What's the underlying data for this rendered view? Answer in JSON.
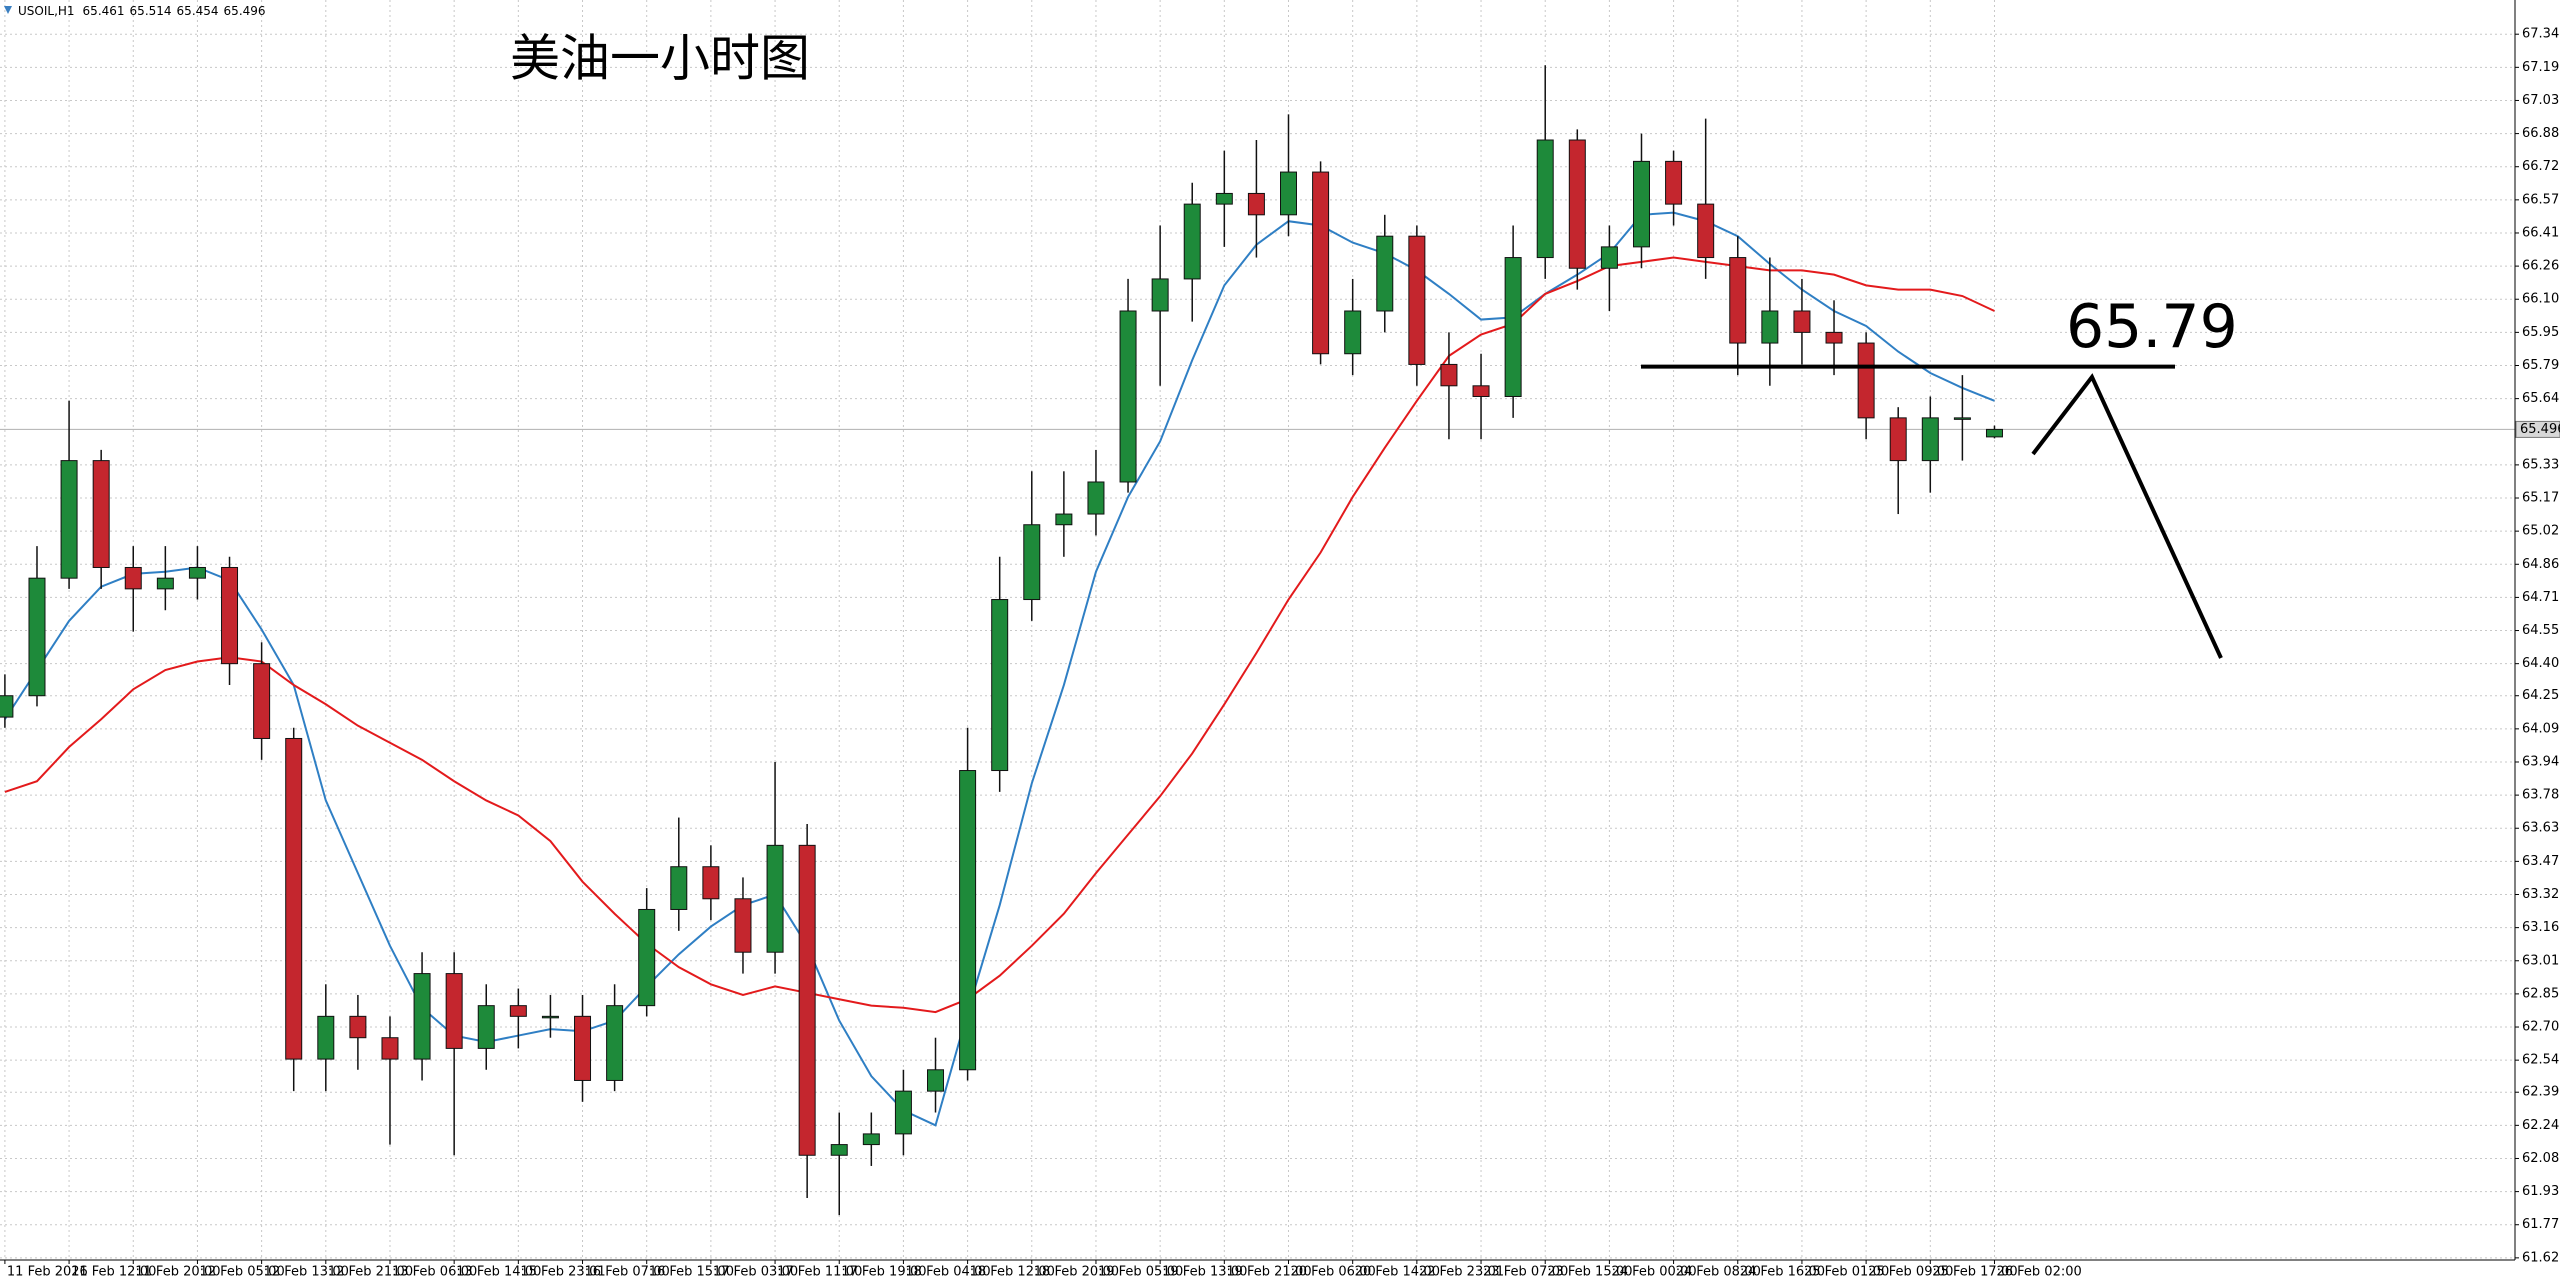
{
  "chart_data": {
    "type": "candlestick",
    "symbol": "USOIL,H1",
    "title": "美油一小时图",
    "level_line": 65.79,
    "categories": [
      "11 Feb 2026",
      null,
      "11 Feb 12:00",
      null,
      "11 Feb 20:00",
      null,
      "12 Feb 05:00",
      null,
      "12 Feb 13:00",
      null,
      "12 Feb 21:00",
      null,
      "13 Feb 06:00",
      null,
      "13 Feb 14:00",
      null,
      "15 Feb 23:01",
      null,
      "16 Feb 07:00",
      null,
      "16 Feb 15:00",
      null,
      "17 Feb 03:00",
      null,
      "17 Feb 11:00",
      null,
      "17 Feb 19:00",
      null,
      "18 Feb 04:00",
      null,
      "18 Feb 12:00",
      null,
      "18 Feb 20:00",
      null,
      "19 Feb 05:00",
      null,
      "19 Feb 13:00",
      null,
      "19 Feb 21:00",
      null,
      "20 Feb 06:00",
      null,
      "20 Feb 14:00",
      null,
      "22 Feb 23:01",
      null,
      "23 Feb 07:00",
      null,
      "23 Feb 15:00",
      null,
      "24 Feb 00:00",
      null,
      "24 Feb 08:00",
      null,
      "24 Feb 16:00",
      null,
      "25 Feb 01:00",
      null,
      "25 Feb 09:00",
      null,
      "25 Feb 17:00",
      null,
      "26 Feb 02:00"
    ],
    "open": [
      64.15,
      64.25,
      64.8,
      65.35,
      64.85,
      64.75,
      64.8,
      64.85,
      64.4,
      64.05,
      62.55,
      62.75,
      62.65,
      62.55,
      62.95,
      62.6,
      62.8,
      62.75,
      62.75,
      62.45,
      62.8,
      63.25,
      63.45,
      63.3,
      63.05,
      63.55,
      62.1,
      62.15,
      62.2,
      62.4,
      62.5,
      63.9,
      64.7,
      65.05,
      65.1,
      65.25,
      66.05,
      66.2,
      66.55,
      66.6,
      66.5,
      66.7,
      65.85,
      66.05,
      66.4,
      65.8,
      65.7,
      65.65,
      66.3,
      66.85,
      66.25,
      66.35,
      66.75,
      66.55,
      66.3,
      65.9,
      66.05,
      65.95,
      65.9,
      65.55,
      65.35,
      65.55,
      65.461
    ],
    "high": [
      64.35,
      64.95,
      65.63,
      65.4,
      64.95,
      64.95,
      64.95,
      64.9,
      64.5,
      64.1,
      62.9,
      62.85,
      62.75,
      63.05,
      63.05,
      62.9,
      62.88,
      62.85,
      62.85,
      62.9,
      63.35,
      63.68,
      63.55,
      63.4,
      63.94,
      63.65,
      62.3,
      62.3,
      62.5,
      62.65,
      64.1,
      64.9,
      65.3,
      65.3,
      65.4,
      66.2,
      66.45,
      66.65,
      66.8,
      66.85,
      66.97,
      66.75,
      66.2,
      66.5,
      66.45,
      65.95,
      65.85,
      66.45,
      67.2,
      66.9,
      66.45,
      66.88,
      66.8,
      66.95,
      66.4,
      66.3,
      66.2,
      66.1,
      65.95,
      65.6,
      65.65,
      65.75,
      65.514
    ],
    "low": [
      64.1,
      64.2,
      64.75,
      64.75,
      64.55,
      64.65,
      64.7,
      64.3,
      63.95,
      62.4,
      62.4,
      62.5,
      62.15,
      62.45,
      62.1,
      62.5,
      62.6,
      62.65,
      62.35,
      62.4,
      62.75,
      63.15,
      63.2,
      62.95,
      62.95,
      61.9,
      61.82,
      62.05,
      62.1,
      62.3,
      62.45,
      63.8,
      64.6,
      64.9,
      65.0,
      65.2,
      65.7,
      66.0,
      66.35,
      66.3,
      66.4,
      65.8,
      65.75,
      65.95,
      65.7,
      65.45,
      65.45,
      65.55,
      66.2,
      66.15,
      66.05,
      66.25,
      66.45,
      66.2,
      65.75,
      65.7,
      65.8,
      65.75,
      65.45,
      65.1,
      65.2,
      65.35,
      65.454
    ],
    "close": [
      64.25,
      64.8,
      65.35,
      64.85,
      64.75,
      64.8,
      64.85,
      64.4,
      64.05,
      62.55,
      62.75,
      62.65,
      62.55,
      62.95,
      62.6,
      62.8,
      62.75,
      62.75,
      62.45,
      62.8,
      63.25,
      63.45,
      63.3,
      63.05,
      63.55,
      62.1,
      62.15,
      62.2,
      62.4,
      62.5,
      63.9,
      64.7,
      65.05,
      65.1,
      65.25,
      66.05,
      66.2,
      66.55,
      66.6,
      66.5,
      66.7,
      65.85,
      66.05,
      66.4,
      65.8,
      65.7,
      65.65,
      66.3,
      66.85,
      66.25,
      66.35,
      66.75,
      66.55,
      66.3,
      65.9,
      66.05,
      65.95,
      65.9,
      65.55,
      65.35,
      65.55,
      65.55,
      65.496
    ],
    "up_color": "#1e8a3a",
    "down_color": "#c4262e",
    "lines": [
      {
        "color": "#2f7fc4",
        "values": [
          64.14,
          64.37,
          64.6,
          64.76,
          64.82,
          64.83,
          64.85,
          64.79,
          64.56,
          64.3,
          63.76,
          63.42,
          63.08,
          62.79,
          62.66,
          62.63,
          62.66,
          62.69,
          62.68,
          62.73,
          62.89,
          63.04,
          63.17,
          63.27,
          63.32,
          63.08,
          62.73,
          62.47,
          62.31,
          62.24,
          62.77,
          63.27,
          63.84,
          64.3,
          64.83,
          65.18,
          65.44,
          65.82,
          66.17,
          66.36,
          66.47,
          66.45,
          66.37,
          66.32,
          66.24,
          66.13,
          66.01,
          66.02,
          66.13,
          66.22,
          66.32,
          66.5,
          66.51,
          66.47,
          66.4,
          66.27,
          66.15,
          66.05,
          65.98,
          65.86,
          65.76,
          65.69,
          65.63
        ]
      },
      {
        "color": "#e31a1c",
        "values": [
          63.8,
          63.85,
          64.01,
          64.14,
          64.28,
          64.37,
          64.41,
          64.43,
          64.41,
          64.3,
          64.21,
          64.11,
          64.03,
          63.95,
          63.85,
          63.76,
          63.69,
          63.57,
          63.38,
          63.23,
          63.09,
          62.98,
          62.9,
          62.85,
          62.89,
          62.86,
          62.83,
          62.8,
          62.79,
          62.77,
          62.83,
          62.94,
          63.08,
          63.23,
          63.42,
          63.6,
          63.78,
          63.98,
          64.21,
          64.45,
          64.7,
          64.92,
          65.18,
          65.41,
          65.63,
          65.84,
          65.94,
          65.99,
          66.13,
          66.19,
          66.26,
          66.28,
          66.3,
          66.28,
          66.26,
          66.24,
          66.24,
          66.22,
          66.17,
          66.15,
          66.15,
          66.12,
          66.05
        ]
      }
    ],
    "ylim": [
      61.61,
      67.505
    ],
    "yticks": [
      67.345,
      {
        "value": 67.19,
        "label": "67.190"
      },
      67.035,
      {
        "value": 66.88,
        "label": "66.880"
      },
      66.725,
      {
        "value": 66.57,
        "label": "66.570"
      },
      66.415,
      {
        "value": 66.26,
        "label": "66.260"
      },
      66.105,
      {
        "value": 65.95,
        "label": "65.950"
      },
      65.795,
      {
        "value": 65.64,
        "label": "65.640"
      },
      {
        "value": 65.33,
        "label": "65.330"
      },
      65.175,
      {
        "value": 65.02,
        "label": "65.020"
      },
      64.865,
      {
        "value": 64.71,
        "label": "64.710"
      },
      64.555,
      {
        "value": 64.4,
        "label": "64.400"
      },
      {
        "value": 64.25,
        "label": "64.250"
      },
      64.095,
      {
        "value": 63.94,
        "label": "63.940"
      },
      63.785,
      {
        "value": 63.63,
        "label": "63.630"
      },
      63.475,
      {
        "value": 63.32,
        "label": "63.320"
      },
      63.165,
      {
        "value": 63.01,
        "label": "63.010"
      },
      62.855,
      {
        "value": 62.7,
        "label": "62.700"
      },
      62.545,
      62.395,
      {
        "value": 62.24,
        "label": "62.240"
      },
      62.085,
      {
        "value": 61.93,
        "label": "61.930"
      },
      61.775,
      {
        "value": 61.62,
        "label": "61.620"
      }
    ],
    "grid": true
  }
}
